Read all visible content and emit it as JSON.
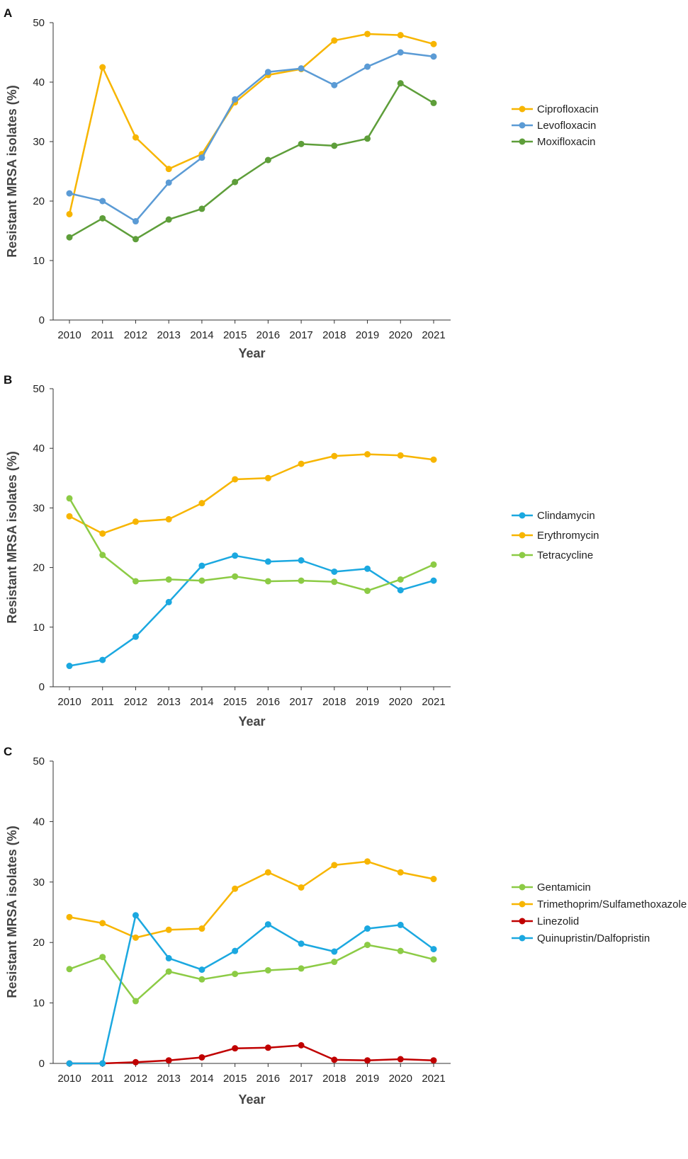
{
  "chart_data": [
    {
      "type": "line",
      "panel_label": "A",
      "xlabel": "Year",
      "ylabel": "Resistant MRSA isolates (%)",
      "ylim": [
        0,
        50
      ],
      "yticks": [
        "0",
        "10",
        "20",
        "30",
        "40",
        "50"
      ],
      "categories": [
        "2010",
        "2011",
        "2012",
        "2013",
        "2014",
        "2015",
        "2016",
        "2017",
        "2018",
        "2019",
        "2020",
        "2021"
      ],
      "grid": false,
      "legend_position": "right",
      "series": [
        {
          "name": "Ciprofloxacin",
          "color": "#F7B500",
          "values": [
            17.8,
            42.5,
            30.7,
            25.4,
            27.9,
            36.6,
            41.2,
            42.2,
            47.0,
            48.1,
            47.9,
            46.4
          ]
        },
        {
          "name": "Levofloxacin",
          "color": "#5B9BD5",
          "values": [
            21.3,
            20.0,
            16.6,
            23.1,
            27.3,
            37.1,
            41.7,
            42.3,
            39.5,
            42.6,
            45.0,
            44.3
          ]
        },
        {
          "name": "Moxifloxacin",
          "color": "#5E9E3A",
          "values": [
            13.9,
            17.1,
            13.6,
            16.9,
            18.7,
            23.2,
            26.9,
            29.6,
            29.3,
            30.5,
            39.8,
            36.5
          ]
        }
      ]
    },
    {
      "type": "line",
      "panel_label": "B",
      "xlabel": "Year",
      "ylabel": "Resistant MRSA isolates (%)",
      "ylim": [
        0,
        50
      ],
      "yticks": [
        "0",
        "10",
        "20",
        "30",
        "40",
        "50"
      ],
      "categories": [
        "2010",
        "2011",
        "2012",
        "2013",
        "2014",
        "2015",
        "2016",
        "2017",
        "2018",
        "2019",
        "2020",
        "2021"
      ],
      "grid": false,
      "legend_position": "right",
      "series": [
        {
          "name": "Clindamycin",
          "color": "#1BA8E0",
          "values": [
            3.5,
            4.5,
            8.4,
            14.2,
            20.3,
            22.0,
            21.0,
            21.2,
            19.3,
            19.8,
            16.2,
            17.8
          ]
        },
        {
          "name": "Erythromycin",
          "color": "#F7B500",
          "values": [
            28.6,
            25.7,
            27.7,
            28.1,
            30.8,
            34.8,
            35.0,
            37.4,
            38.7,
            39.0,
            38.8,
            38.1
          ]
        },
        {
          "name": "Tetracycline",
          "color": "#8CCB45",
          "values": [
            31.6,
            22.1,
            17.7,
            18.0,
            17.8,
            18.5,
            17.7,
            17.8,
            17.6,
            16.1,
            18.0,
            20.5
          ]
        }
      ]
    },
    {
      "type": "line",
      "panel_label": "C",
      "xlabel": "Year",
      "ylabel": "Resistant MRSA isolates (%)",
      "ylim": [
        0,
        50
      ],
      "yticks": [
        "0",
        "10",
        "20",
        "30",
        "40",
        "50"
      ],
      "categories": [
        "2010",
        "2011",
        "2012",
        "2013",
        "2014",
        "2015",
        "2016",
        "2017",
        "2018",
        "2019",
        "2020",
        "2021"
      ],
      "grid": false,
      "legend_position": "right",
      "series": [
        {
          "name": "Gentamicin",
          "color": "#8CCB45",
          "values": [
            15.6,
            17.6,
            10.3,
            15.2,
            13.9,
            14.8,
            15.4,
            15.7,
            16.8,
            19.6,
            18.6,
            17.2
          ]
        },
        {
          "name": "Trimethoprim/Sulfamethoxazole",
          "color": "#F7B500",
          "values": [
            24.2,
            23.2,
            20.8,
            22.1,
            22.3,
            28.9,
            31.6,
            29.1,
            32.8,
            33.4,
            31.6,
            30.5
          ]
        },
        {
          "name": "Linezolid",
          "color": "#C00000",
          "values": [
            0.0,
            0.0,
            0.2,
            0.5,
            1.0,
            2.5,
            2.6,
            3.0,
            0.6,
            0.5,
            0.7,
            0.5
          ]
        },
        {
          "name": "Quinupristin/Dalfopristin",
          "color": "#1BA8E0",
          "values": [
            0.0,
            0.0,
            24.5,
            17.4,
            15.5,
            18.6,
            23.0,
            19.8,
            18.5,
            22.3,
            22.9,
            18.9
          ]
        }
      ]
    }
  ]
}
